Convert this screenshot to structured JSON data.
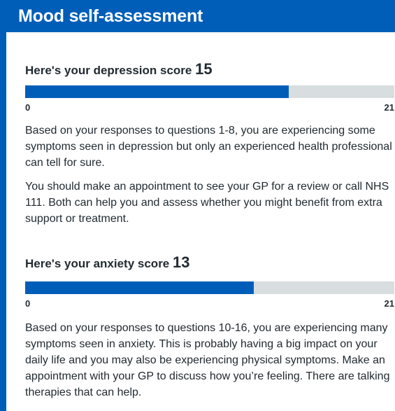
{
  "header": {
    "title": "Mood self-assessment"
  },
  "depression": {
    "label": "Here's your depression score",
    "score": "15",
    "min": "0",
    "max": "21",
    "fraction": 0.714,
    "paragraph1": "Based on your responses to questions 1-8, you are experiencing some symptoms seen in depression but only an experienced health professional can tell for sure.",
    "paragraph2": "You should make an appointment to see your GP for a review or call NHS 111. Both can help you and assess whether you might benefit from extra support or treatment."
  },
  "anxiety": {
    "label": "Here's your anxiety score",
    "score": "13",
    "min": "0",
    "max": "21",
    "fraction": 0.619,
    "paragraph1": "Based on your responses to questions 10-16, you are experiencing many symptoms seen in anxiety. This is probably having a big impact on your daily life and you may also be experiencing physical symptoms. Make an appointment with your GP to discuss how you’re feeling. There are talking therapies that can help."
  },
  "colors": {
    "brand": "#005eb8",
    "track": "#d8dde0",
    "text": "#212b32"
  }
}
